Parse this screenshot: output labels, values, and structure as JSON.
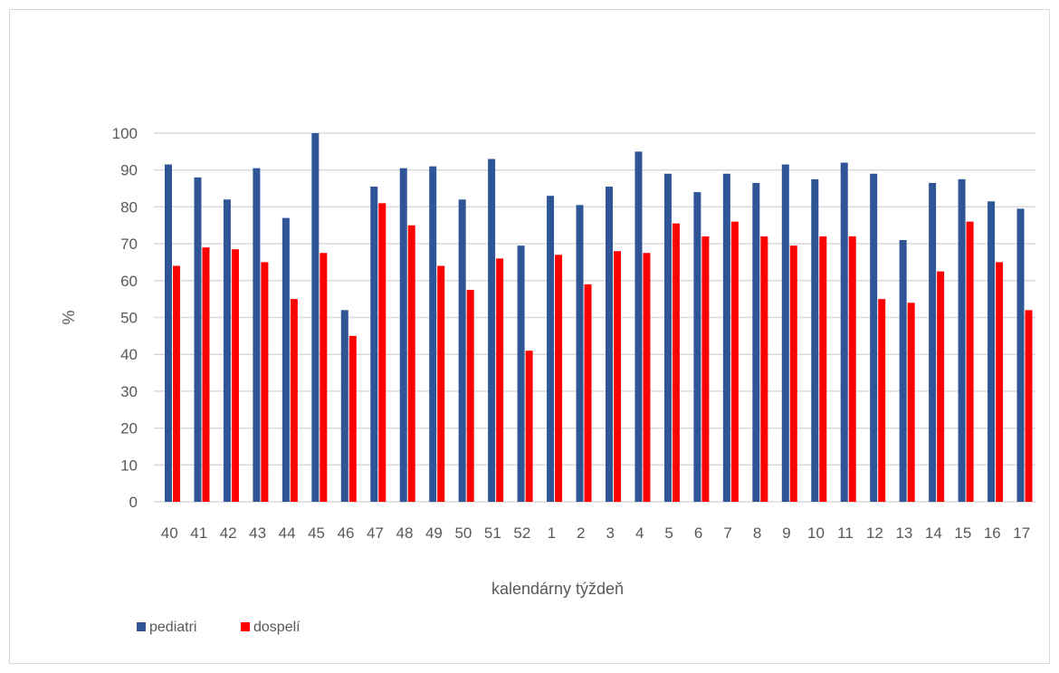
{
  "chart_data": {
    "type": "bar",
    "title": "",
    "xlabel": "kalendárny týždeň",
    "ylabel": "%",
    "ylim": [
      0,
      100
    ],
    "yticks": [
      0,
      10,
      20,
      30,
      40,
      50,
      60,
      70,
      80,
      90,
      100
    ],
    "grid": true,
    "legend_position": "bottom-left",
    "categories": [
      "40",
      "41",
      "42",
      "43",
      "44",
      "45",
      "46",
      "47",
      "48",
      "49",
      "50",
      "51",
      "52",
      "1",
      "2",
      "3",
      "4",
      "5",
      "6",
      "7",
      "8",
      "9",
      "10",
      "11",
      "12",
      "13",
      "14",
      "15",
      "16",
      "17"
    ],
    "series": [
      {
        "name": "pediatri",
        "color": "#2f5597",
        "values": [
          91.5,
          88,
          82,
          90.5,
          77,
          100,
          52,
          85.5,
          90.5,
          91,
          82,
          93,
          69.5,
          83,
          80.5,
          85.5,
          95,
          89,
          84,
          89,
          86.5,
          91.5,
          87.5,
          92,
          89,
          71,
          86.5,
          87.5,
          81.5,
          79.5
        ]
      },
      {
        "name": "dospelí",
        "color": "#ff0000",
        "values": [
          64,
          69,
          68.5,
          65,
          55,
          67.5,
          45,
          81,
          75,
          64,
          57.5,
          66,
          41,
          67,
          59,
          68,
          67.5,
          75.5,
          72,
          76,
          72,
          69.5,
          72,
          72,
          55,
          54,
          62.5,
          76,
          65,
          52
        ]
      }
    ]
  }
}
